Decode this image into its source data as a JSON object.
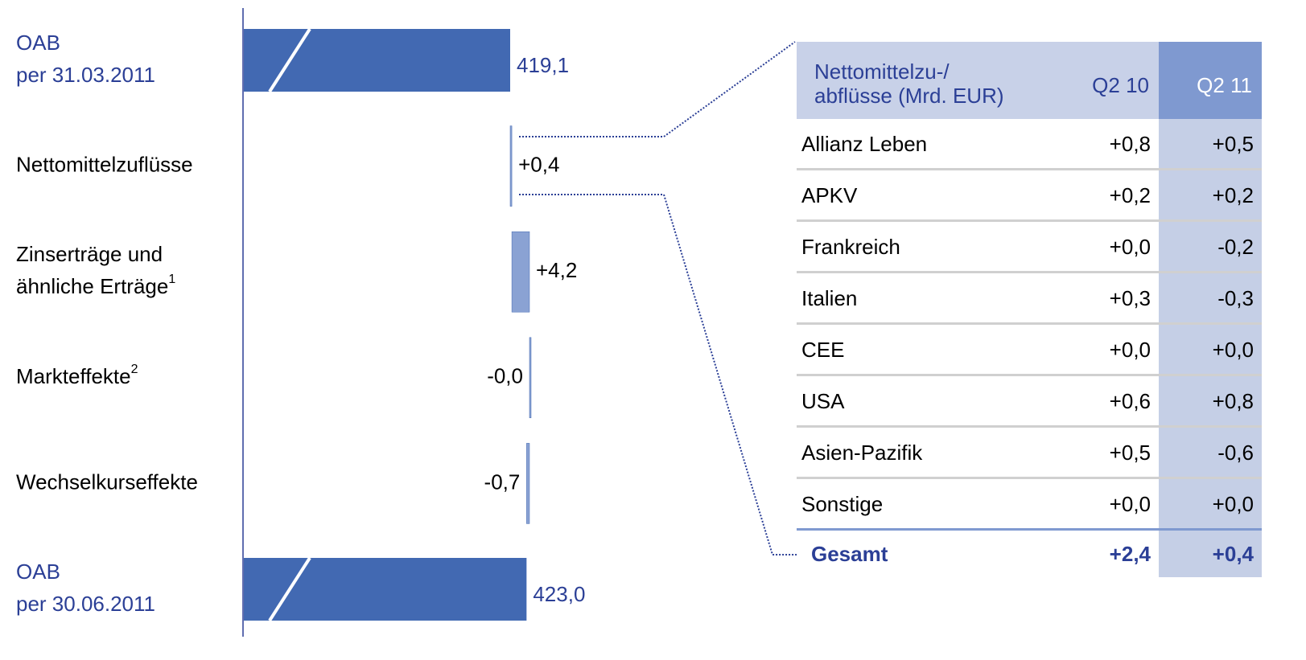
{
  "chart_data": {
    "type": "waterfall",
    "categories": [
      "OAB\nper 31.03.2011",
      "Nettomittelzuflüsse",
      "Zinserträge und\nähnliche Erträge",
      "Markteffekte",
      "Wechselkurseffekte",
      "OAB\nper 30.06.2011"
    ],
    "footnote_marks": [
      null,
      null,
      "1",
      "2",
      null,
      null
    ],
    "values": [
      419.1,
      0.4,
      4.2,
      -0.0,
      -0.7,
      423.0
    ],
    "value_labels": [
      "419,1",
      "+0,4",
      "+4,2",
      "-0,0",
      "-0,7",
      "423,0"
    ],
    "total_color": "#4269b2",
    "delta_color": "#8aa2d3"
  },
  "table": {
    "header": [
      "Nettomittelzu-/\nabflüsse (Mrd. EUR)",
      "Q2 10",
      "Q2 11"
    ],
    "rows": [
      [
        "Allianz Leben",
        "+0,8",
        "+0,5"
      ],
      [
        "APKV",
        "+0,2",
        "+0,2"
      ],
      [
        "Frankreich",
        "+0,0",
        "-0,2"
      ],
      [
        "Italien",
        "+0,3",
        "-0,3"
      ],
      [
        "CEE",
        "+0,0",
        "+0,0"
      ],
      [
        "USA",
        "+0,6",
        "+0,8"
      ],
      [
        "Asien-Pazifik",
        "+0,5",
        "-0,6"
      ],
      [
        "Sonstige",
        "+0,0",
        "+0,0"
      ]
    ],
    "total": [
      "Gesamt",
      "+2,4",
      "+0,4"
    ]
  }
}
